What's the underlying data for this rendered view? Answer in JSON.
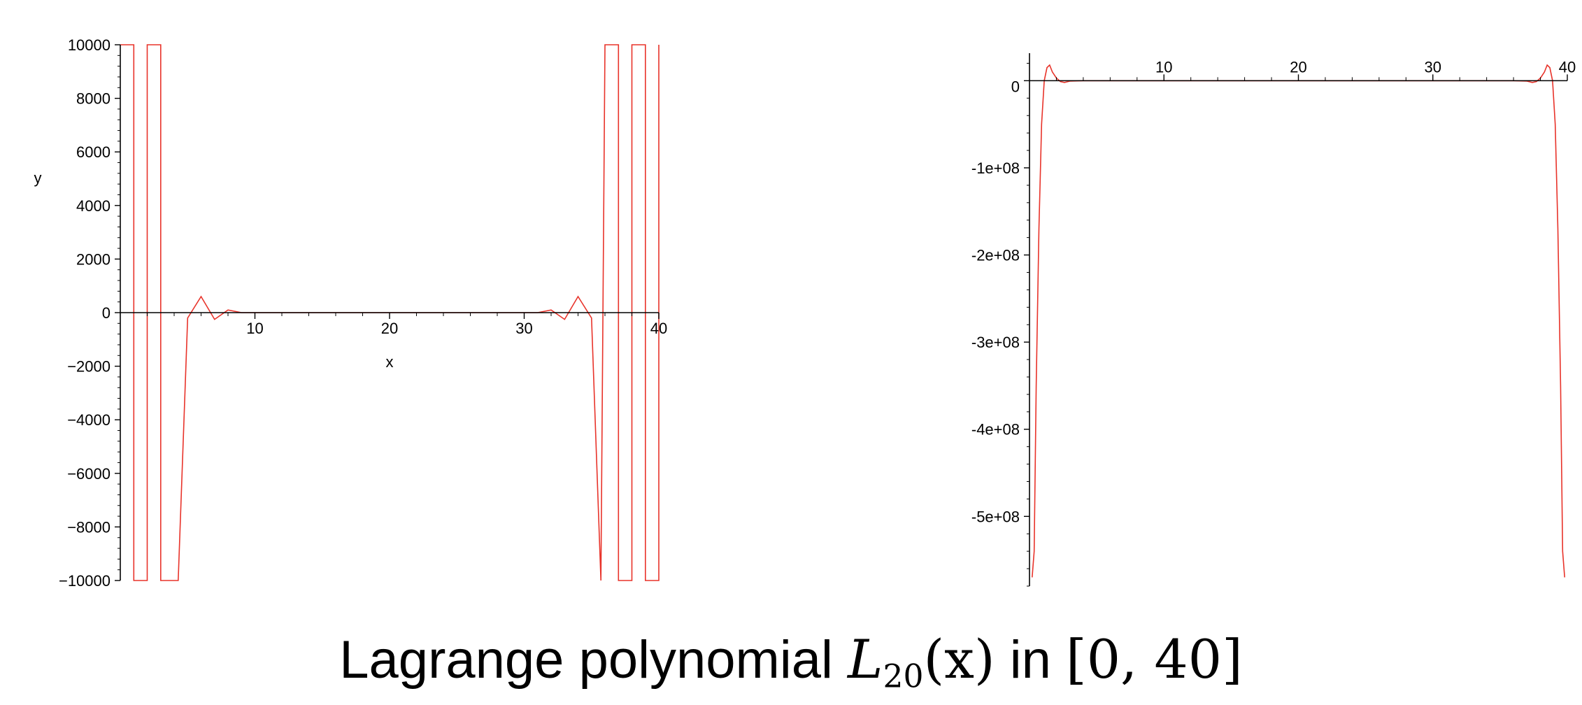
{
  "figure": {
    "caption_prefix": "Lagrange polynomial ",
    "caption_math_var": "L",
    "caption_math_sub": "20",
    "caption_math_arg": "(x)",
    "caption_in": " in ",
    "caption_interval": "[0, 40]"
  },
  "chart_data": [
    {
      "type": "line",
      "name": "left-plot",
      "xlabel": "x",
      "ylabel": "y",
      "xlim": [
        0,
        40
      ],
      "ylim": [
        -10000,
        10000
      ],
      "x_ticks": [
        10,
        20,
        30,
        40
      ],
      "x_tick_labels": [
        "10",
        "20",
        "30",
        "40"
      ],
      "y_ticks": [
        10000,
        8000,
        6000,
        4000,
        2000,
        0,
        -2000,
        -4000,
        -6000,
        -8000,
        -10000
      ],
      "y_tick_labels": [
        "10000",
        "8000",
        "6000",
        "4000",
        "2000",
        "0",
        "−2000",
        "−4000",
        "−6000",
        "−8000",
        "−10000"
      ],
      "grid": false,
      "line_color": "#e8332a",
      "series": [
        {
          "x": [
            0,
            1,
            1,
            2,
            2,
            3,
            3,
            4,
            4.3,
            5,
            6,
            7,
            8,
            9,
            10,
            15,
            20,
            25,
            30,
            31,
            32,
            33,
            34,
            35,
            35.7,
            36,
            36,
            37,
            37,
            38,
            38,
            39,
            39,
            40,
            40
          ],
          "y": [
            10000,
            10000,
            -10000,
            -10000,
            10000,
            10000,
            -10000,
            -10000,
            -10000,
            -200,
            600,
            -250,
            100,
            0,
            0,
            0,
            0,
            0,
            0,
            0,
            100,
            -250,
            600,
            -200,
            -10000,
            10000,
            10000,
            10000,
            -10000,
            -10000,
            10000,
            10000,
            -10000,
            -10000,
            10000
          ]
        }
      ]
    },
    {
      "type": "line",
      "name": "right-plot",
      "xlim": [
        0,
        40
      ],
      "ylim": [
        -580000000,
        30000000
      ],
      "x_ticks": [
        10,
        20,
        30,
        40
      ],
      "x_tick_labels": [
        "10",
        "20",
        "30",
        "40"
      ],
      "y_ticks": [
        0,
        -100000000,
        -200000000,
        -300000000,
        -400000000,
        -500000000
      ],
      "y_tick_labels": [
        "0",
        "-1e+08",
        "-2e+08",
        "-3e+08",
        "-4e+08",
        "-5e+08"
      ],
      "grid": false,
      "line_color": "#e8332a",
      "series": [
        {
          "x": [
            0.2,
            0.35,
            0.5,
            0.7,
            0.9,
            1.1,
            1.3,
            1.5,
            1.7,
            2,
            2.3,
            2.6,
            3,
            4,
            10,
            20,
            30,
            36,
            37,
            37.4,
            37.7,
            38,
            38.3,
            38.5,
            38.7,
            38.9,
            39.1,
            39.3,
            39.5,
            39.65,
            39.8
          ],
          "y": [
            -570000000,
            -540000000,
            -350000000,
            -170000000,
            -50000000,
            0,
            15000000,
            18000000,
            10000000,
            3000000,
            -1000000,
            -2000000,
            -500000,
            0,
            0,
            0,
            0,
            0,
            -500000,
            -2000000,
            -1000000,
            3000000,
            10000000,
            18000000,
            15000000,
            0,
            -50000000,
            -170000000,
            -350000000,
            -540000000,
            -570000000
          ]
        }
      ]
    }
  ]
}
